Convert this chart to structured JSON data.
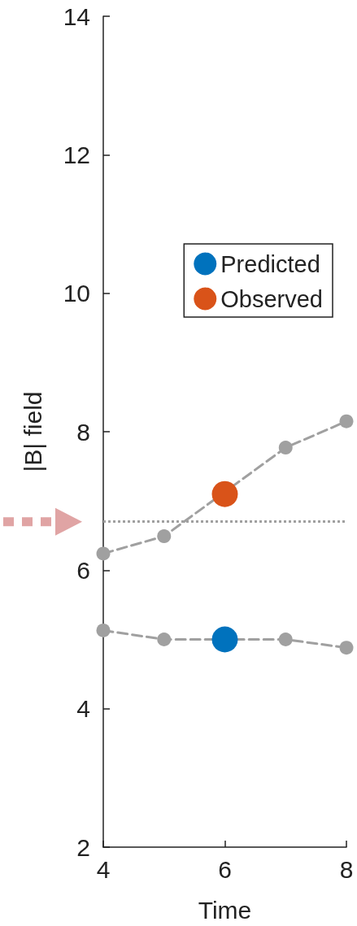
{
  "chart_data": {
    "type": "line",
    "xlabel": "Time",
    "ylabel": "|B| field",
    "xlim": [
      4,
      8
    ],
    "xticks": [
      4,
      6,
      8
    ],
    "ylim": [
      2,
      14
    ],
    "yticks": [
      2,
      4,
      6,
      8,
      10,
      12,
      14
    ],
    "series": [
      {
        "color": "#a0a0a0",
        "x": [
          4,
          5,
          6,
          7,
          8
        ],
        "values": [
          6.24,
          6.49,
          null,
          7.77,
          8.15
        ],
        "line_style": "dashed"
      },
      {
        "color": "#a0a0a0",
        "x": [
          4,
          5,
          6,
          7,
          8
        ],
        "values": [
          5.13,
          5.0,
          null,
          5.0,
          4.88
        ],
        "line_style": "dashed"
      },
      {
        "type": "scatter",
        "name": "Predicted",
        "color": "#0072bd",
        "x": [
          6
        ],
        "values": [
          5.0
        ]
      },
      {
        "type": "scatter",
        "name": "Observed",
        "color": "#d95319",
        "x": [
          6
        ],
        "values": [
          7.1
        ]
      }
    ],
    "ref_lines": [
      {
        "axis": "y",
        "value": 6.7,
        "color": "#a0a0a0",
        "line_style": "dotted"
      }
    ],
    "marker": "circle",
    "grid": false,
    "legend": "right"
  }
}
